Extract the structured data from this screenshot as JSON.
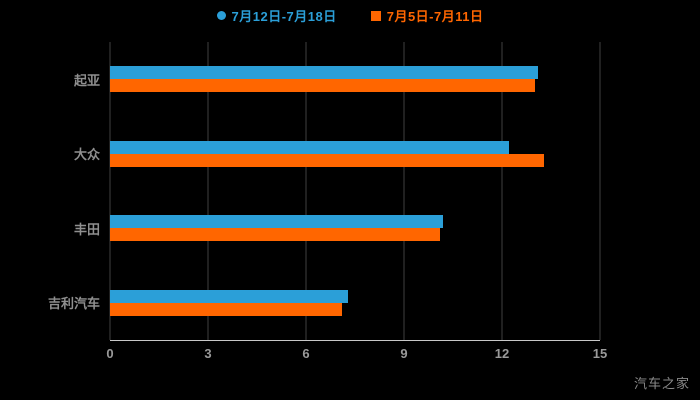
{
  "legend": {
    "items": [
      {
        "label": "7月12日-7月18日",
        "marker": "circle"
      },
      {
        "label": "7月5日-7月11日",
        "marker": "square"
      }
    ]
  },
  "watermark": "汽车之家",
  "chart_data": {
    "type": "bar",
    "orientation": "horizontal",
    "title": "",
    "xlabel": "",
    "ylabel": "",
    "categories": [
      "起亚",
      "大众",
      "丰田",
      "吉利汽车"
    ],
    "series": [
      {
        "name": "7月12日-7月18日",
        "color": "#2b9fd8",
        "values": [
          13.1,
          12.2,
          10.2,
          7.3
        ]
      },
      {
        "name": "7月5日-7月11日",
        "color": "#ff6600",
        "values": [
          13.0,
          13.3,
          10.1,
          7.1
        ]
      }
    ],
    "xlim": [
      0,
      15
    ],
    "xticks": [
      0,
      3,
      6,
      9,
      12,
      15
    ],
    "grid": true,
    "legend_position": "top",
    "background": "#000000"
  }
}
